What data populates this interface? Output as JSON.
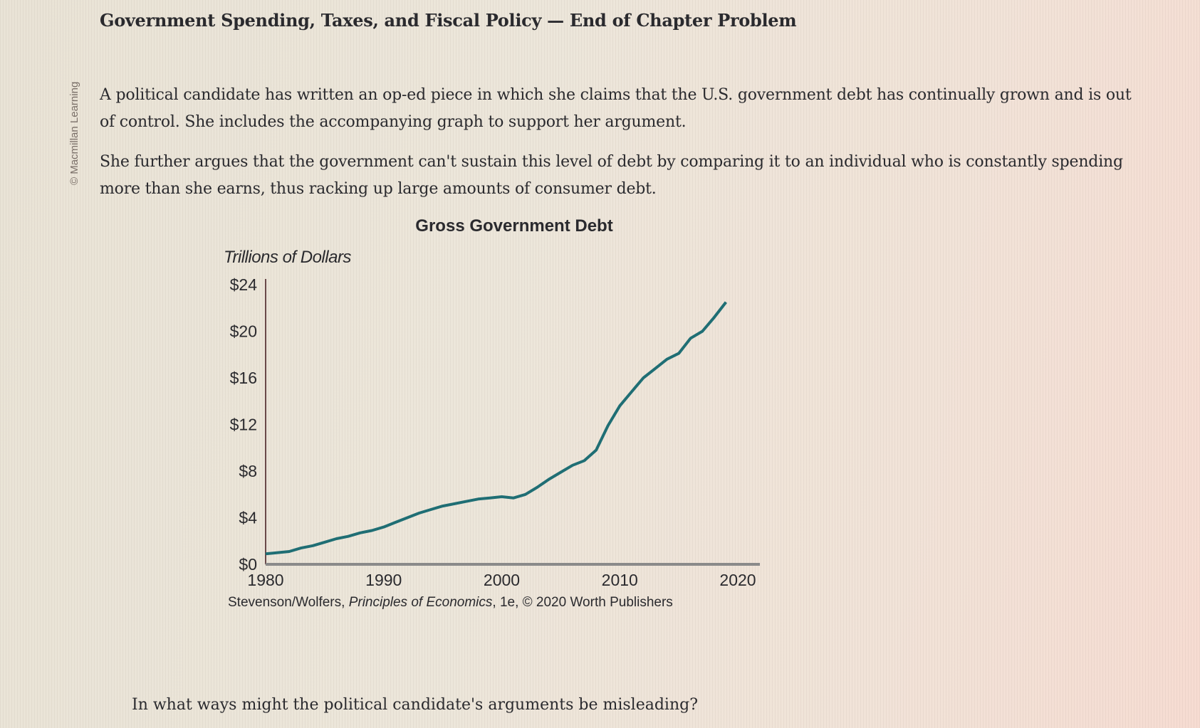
{
  "credit": "© Macmillan Learning",
  "title": "Government Spending, Taxes, and Fiscal Policy — End of Chapter Problem",
  "paragraphs": [
    "A political candidate has written an op-ed piece in which she claims that the U.S. government debt has continually grown and is out of control. She includes the accompanying graph to support her argument.",
    "She further argues that the government can't sustain this level of debt by comparing it to an individual who is constantly spending more than she earns, thus racking up large amounts of consumer debt."
  ],
  "source": {
    "authors": "Stevenson/Wolfers, ",
    "book": "Principles of Economics",
    "rest": ", 1e, © 2020 Worth Publishers"
  },
  "question": "In what ways might the political candidate's arguments be misleading?",
  "colors": {
    "line": "#1f6e74"
  },
  "chart_data": {
    "type": "line",
    "title": "Gross Government Debt",
    "ylabel": "Trillions of Dollars",
    "xlabel": "",
    "xlim": [
      1980,
      2020
    ],
    "ylim": [
      0,
      24
    ],
    "xticks": [
      1980,
      1990,
      2000,
      2010,
      2020
    ],
    "xtick_labels": [
      "1980",
      "1990",
      "2000",
      "2010",
      "2020"
    ],
    "yticks": [
      0,
      4,
      8,
      12,
      16,
      20,
      24
    ],
    "ytick_labels": [
      "$0",
      "$4",
      "$8",
      "$12",
      "$16",
      "$20",
      "$24"
    ],
    "grid": false,
    "series": [
      {
        "name": "Gross Government Debt",
        "x": [
          1980,
          1981,
          1982,
          1983,
          1984,
          1985,
          1986,
          1987,
          1988,
          1989,
          1990,
          1991,
          1992,
          1993,
          1994,
          1995,
          1996,
          1997,
          1998,
          1999,
          2000,
          2001,
          2002,
          2003,
          2004,
          2005,
          2006,
          2007,
          2008,
          2009,
          2010,
          2011,
          2012,
          2013,
          2014,
          2015,
          2016,
          2017,
          2018,
          2019
        ],
        "values": [
          0.9,
          1.0,
          1.1,
          1.4,
          1.6,
          1.9,
          2.2,
          2.4,
          2.7,
          2.9,
          3.2,
          3.6,
          4.0,
          4.4,
          4.7,
          5.0,
          5.2,
          5.4,
          5.6,
          5.7,
          5.8,
          5.7,
          6.0,
          6.6,
          7.3,
          7.9,
          8.5,
          8.9,
          9.8,
          11.9,
          13.6,
          14.8,
          16.0,
          16.8,
          17.6,
          18.1,
          19.4,
          20.0,
          21.2,
          22.5
        ]
      }
    ]
  }
}
